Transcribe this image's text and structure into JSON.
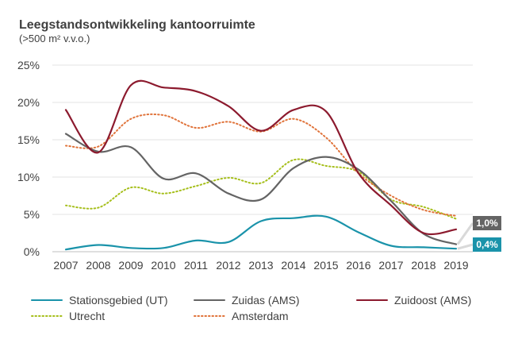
{
  "chart_data": {
    "type": "line",
    "title": "Leegstandsontwikkeling kantoorruimte",
    "subtitle": "(>500 m² v.v.o.)",
    "xlabel": "",
    "ylabel": "",
    "x": [
      "2007",
      "2008",
      "2009",
      "2010",
      "2011",
      "2012",
      "2013",
      "2014",
      "2015",
      "2016",
      "2017",
      "2018",
      "2019"
    ],
    "y_ticks": [
      "0%",
      "5%",
      "10%",
      "15%",
      "20%",
      "25%"
    ],
    "ylim": [
      0,
      25
    ],
    "grid": true,
    "legend_position": "bottom",
    "series": [
      {
        "name": "Stationsgebied (UT)",
        "color": "#1a93aa",
        "style": "solid",
        "values": [
          0.3,
          0.9,
          0.5,
          0.5,
          1.5,
          1.3,
          4.1,
          4.5,
          4.7,
          2.6,
          0.8,
          0.6,
          0.4
        ]
      },
      {
        "name": "Zuidas (AMS)",
        "color": "#646464",
        "style": "solid",
        "values": [
          15.8,
          13.4,
          14.0,
          9.8,
          10.5,
          7.8,
          7.0,
          11.2,
          12.7,
          11.0,
          6.8,
          2.4,
          1.0
        ]
      },
      {
        "name": "Zuidoost (AMS)",
        "color": "#8c1a2e",
        "style": "solid",
        "values": [
          19.0,
          13.3,
          22.3,
          22.0,
          21.5,
          19.5,
          16.2,
          19.0,
          18.8,
          10.5,
          6.2,
          2.5,
          3.0
        ]
      },
      {
        "name": "Utrecht",
        "color": "#a6bf1c",
        "style": "dotted",
        "values": [
          6.2,
          5.9,
          8.6,
          7.8,
          8.8,
          9.9,
          9.2,
          12.3,
          11.5,
          10.7,
          7.0,
          6.0,
          4.4
        ]
      },
      {
        "name": "Amsterdam",
        "color": "#e0733a",
        "style": "dotted",
        "values": [
          14.2,
          14.1,
          17.8,
          18.3,
          16.6,
          17.4,
          16.1,
          17.8,
          15.3,
          10.5,
          7.5,
          5.6,
          4.8
        ]
      }
    ],
    "callouts": [
      {
        "label": "1,0%",
        "series": "Zuidas (AMS)",
        "color": "#646464"
      },
      {
        "label": "0,4%",
        "series": "Stationsgebied (UT)",
        "color": "#1a93aa"
      }
    ]
  }
}
